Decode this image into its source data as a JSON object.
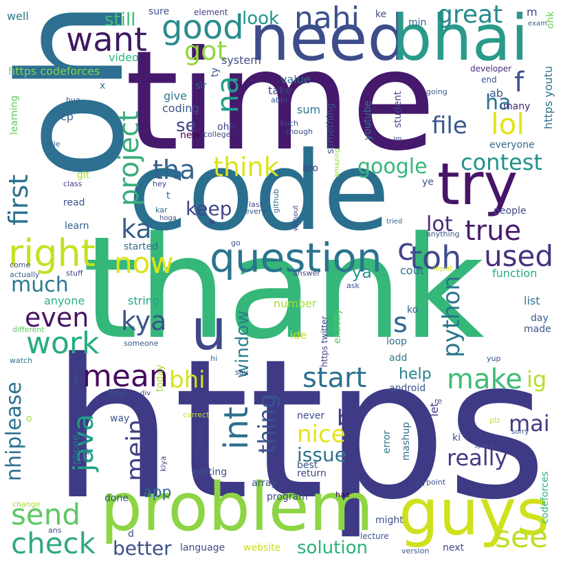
{
  "words": [
    {
      "text": "https",
      "color": "#3e3a85"
    },
    {
      "text": "thank",
      "color": "#35b779"
    },
    {
      "text": "time",
      "color": "#45196c"
    },
    {
      "text": "code",
      "color": "#2a6f8e"
    },
    {
      "text": "oh",
      "color": "#2d7092"
    },
    {
      "text": "problem",
      "color": "#8dd544"
    },
    {
      "text": "guys",
      "color": "#cfe11c"
    },
    {
      "text": "need",
      "color": "#3d4d8a"
    },
    {
      "text": "bhai",
      "color": "#2a9a8a"
    },
    {
      "text": "try",
      "color": "#481467"
    },
    {
      "text": "u",
      "color": "#3f4889"
    },
    {
      "text": "question",
      "color": "#2b748e"
    },
    {
      "text": "nahi",
      "color": "#3b528b"
    },
    {
      "text": "want",
      "color": "#3f1a63"
    },
    {
      "text": "good",
      "color": "#2b8c8c"
    },
    {
      "text": "got",
      "color": "#94d840"
    },
    {
      "text": "na",
      "color": "#1f9e89"
    },
    {
      "text": "project",
      "color": "#39ad7a"
    },
    {
      "text": "right",
      "color": "#c5e021"
    },
    {
      "text": "now",
      "color": "#dde318"
    },
    {
      "text": "work",
      "color": "#26ad81"
    },
    {
      "text": "mean",
      "color": "#460b5e"
    },
    {
      "text": "send",
      "color": "#5cc863"
    },
    {
      "text": "check",
      "color": "#31a97b"
    },
    {
      "text": "java",
      "color": "#1fa088"
    },
    {
      "text": "int",
      "color": "#2e6f8e"
    },
    {
      "text": "bhi",
      "color": "#d5e21a"
    },
    {
      "text": "kya",
      "color": "#3a548c"
    },
    {
      "text": "tha",
      "color": "#33628d"
    },
    {
      "text": "think",
      "color": "#dde318"
    },
    {
      "text": "first",
      "color": "#2c728e"
    },
    {
      "text": "ka",
      "color": "#365d8d"
    },
    {
      "text": "even",
      "color": "#471365"
    },
    {
      "text": "much",
      "color": "#2a788e"
    },
    {
      "text": "start",
      "color": "#2c718e"
    },
    {
      "text": "make",
      "color": "#3dbc74"
    },
    {
      "text": "j",
      "color": "#443a83"
    },
    {
      "text": "mein",
      "color": "#433d84"
    },
    {
      "text": "s",
      "color": "#31688e"
    },
    {
      "text": "python",
      "color": "#2a768e"
    },
    {
      "text": "window",
      "color": "#277f8e"
    },
    {
      "text": "toh",
      "color": "#3e4a89"
    },
    {
      "text": "used",
      "color": "#46327e"
    },
    {
      "text": "true",
      "color": "#481b6d"
    },
    {
      "text": "c",
      "color": "#414487"
    },
    {
      "text": "lot",
      "color": "#482979"
    },
    {
      "text": "keep",
      "color": "#404588"
    },
    {
      "text": "contest",
      "color": "#21918c"
    },
    {
      "text": "google",
      "color": "#35b779"
    },
    {
      "text": "file",
      "color": "#39568c"
    },
    {
      "text": "lol",
      "color": "#e2e418"
    },
    {
      "text": "ha",
      "color": "#2e6e8e"
    },
    {
      "text": "f",
      "color": "#3b528b"
    },
    {
      "text": "great",
      "color": "#23898e"
    },
    {
      "text": "look",
      "color": "#1f968b"
    },
    {
      "text": "still",
      "color": "#3ebc73"
    },
    {
      "text": "se",
      "color": "#404688"
    },
    {
      "text": "nice",
      "color": "#e5e419"
    },
    {
      "text": "thing",
      "color": "#3a538b"
    },
    {
      "text": "b",
      "color": "#453581"
    },
    {
      "text": "issue",
      "color": "#2c728e"
    },
    {
      "text": "really",
      "color": "#453882"
    },
    {
      "text": "mai",
      "color": "#443983"
    },
    {
      "text": "ig",
      "color": "#b8de29"
    },
    {
      "text": "help",
      "color": "#26828e"
    },
    {
      "text": "see",
      "color": "#bddf26"
    },
    {
      "text": "solution",
      "color": "#2db27d"
    },
    {
      "text": "better",
      "color": "#3c4f8a"
    },
    {
      "text": "nhiplease",
      "color": "#2d708e"
    },
    {
      "text": "app",
      "color": "#31688e"
    },
    {
      "text": "ya",
      "color": "#1f988b"
    },
    {
      "text": "sure",
      "color": "#3b528b"
    },
    {
      "text": "element",
      "color": "#424186"
    },
    {
      "text": "ke",
      "color": "#3e4c8a"
    },
    {
      "text": "m",
      "color": "#404588"
    },
    {
      "text": "ohk",
      "color": "#6ece58"
    },
    {
      "text": "well",
      "color": "#2a768e"
    },
    {
      "text": "min",
      "color": "#34608d"
    },
    {
      "text": "exam",
      "color": "#35608d"
    },
    {
      "text": "video",
      "color": "#2fb47c"
    },
    {
      "text": "system",
      "color": "#3e4a89"
    },
    {
      "text": "https codeforces",
      "color": "#7fd34e"
    },
    {
      "text": "ty",
      "color": "#3b528b"
    },
    {
      "text": "value",
      "color": "#2d718e"
    },
    {
      "text": "developer",
      "color": "#472c7a"
    },
    {
      "text": "end",
      "color": "#3c508b"
    },
    {
      "text": "https youtu",
      "color": "#2d708e"
    },
    {
      "text": "sir",
      "color": "#31678e"
    },
    {
      "text": "take",
      "color": "#424186"
    },
    {
      "text": "abhi",
      "color": "#365c8d"
    },
    {
      "text": "give",
      "color": "#2a778e"
    },
    {
      "text": "x",
      "color": "#27808e"
    },
    {
      "text": "hua",
      "color": "#32658e"
    },
    {
      "text": "coding",
      "color": "#3b528b"
    },
    {
      "text": "sum",
      "color": "#2a788e"
    },
    {
      "text": "kuch",
      "color": "#3b528b"
    },
    {
      "text": "something",
      "color": "#3a548c"
    },
    {
      "text": "student",
      "color": "#3f4788"
    },
    {
      "text": "ab",
      "color": "#39568c"
    },
    {
      "text": "going",
      "color": "#365c8d"
    },
    {
      "text": "many",
      "color": "#482475"
    },
    {
      "text": "learning",
      "color": "#5ec962"
    },
    {
      "text": "cp",
      "color": "#33638d"
    },
    {
      "text": "ohh",
      "color": "#433e85"
    },
    {
      "text": "new",
      "color": "#440154"
    },
    {
      "text": "college",
      "color": "#3e4989"
    },
    {
      "text": "though",
      "color": "#3f4889"
    },
    {
      "text": "youtube",
      "color": "#2a788e"
    },
    {
      "text": "im",
      "color": "#3e4a89"
    },
    {
      "text": "everyone",
      "color": "#31688e"
    },
    {
      "text": "able",
      "color": "#33638d"
    },
    {
      "text": "amazing",
      "color": "#95d840"
    },
    {
      "text": "git",
      "color": "#a2da37"
    },
    {
      "text": "bro",
      "color": "#433e85"
    },
    {
      "text": "ye",
      "color": "#3a548c"
    },
    {
      "text": "class",
      "color": "#453781"
    },
    {
      "text": "hey",
      "color": "#414487"
    },
    {
      "text": "t",
      "color": "#34608d"
    },
    {
      "text": "kar",
      "color": "#31688e"
    },
    {
      "text": "last",
      "color": "#3e4989"
    },
    {
      "text": "every",
      "color": "#37598c"
    },
    {
      "text": "read",
      "color": "#3b528b"
    },
    {
      "text": "hoga",
      "color": "#3c4f8a"
    },
    {
      "text": "github",
      "color": "#2e6e8e"
    },
    {
      "text": "without",
      "color": "#404588"
    },
    {
      "text": "tried",
      "color": "#33638d"
    },
    {
      "text": "people",
      "color": "#3e4989"
    },
    {
      "text": "learn",
      "color": "#33638d"
    },
    {
      "text": "ik",
      "color": "#482878"
    },
    {
      "text": "anything",
      "color": "#3b528b"
    },
    {
      "text": "started",
      "color": "#2f6b8e"
    },
    {
      "text": "go",
      "color": "#3c4f8a"
    },
    {
      "text": "input",
      "color": "#cde11d"
    },
    {
      "text": "come",
      "color": "#3b528b"
    },
    {
      "text": "actually",
      "color": "#34608d"
    },
    {
      "text": "stuff",
      "color": "#414487"
    },
    {
      "text": "answer",
      "color": "#404588"
    },
    {
      "text": "ask",
      "color": "#3e4a89"
    },
    {
      "text": "cout",
      "color": "#2c738e"
    },
    {
      "text": "function",
      "color": "#25ac82"
    },
    {
      "text": "anyone",
      "color": "#2ab07f"
    },
    {
      "text": "string",
      "color": "#21a685"
    },
    {
      "text": "number",
      "color": "#a8db34"
    },
    {
      "text": "list",
      "color": "#2c738e"
    },
    {
      "text": "day",
      "color": "#365c8d"
    },
    {
      "text": "made",
      "color": "#3b528b"
    },
    {
      "text": "ko",
      "color": "#34608d"
    },
    {
      "text": "https twitter",
      "color": "#433e85"
    },
    {
      "text": "exactly",
      "color": "#5cc863"
    },
    {
      "text": "different",
      "color": "#5ec962"
    },
    {
      "text": "someone",
      "color": "#3a548c"
    },
    {
      "text": "ide",
      "color": "#c8e020"
    },
    {
      "text": "loop",
      "color": "#2f6c8e"
    },
    {
      "text": "watch",
      "color": "#2a788e"
    },
    {
      "text": "hi",
      "color": "#32658e"
    },
    {
      "text": "yup",
      "color": "#3b528b"
    },
    {
      "text": "today",
      "color": "#a8db34"
    },
    {
      "text": "say",
      "color": "#3e4a89"
    },
    {
      "text": "add",
      "color": "#2a778e"
    },
    {
      "text": "max",
      "color": "#3a548c"
    },
    {
      "text": "android",
      "color": "#3b528b"
    },
    {
      "text": "find",
      "color": "#3c4f8a"
    },
    {
      "text": "div",
      "color": "#433e85"
    },
    {
      "text": "re",
      "color": "#3a548c"
    },
    {
      "text": "let",
      "color": "#453882"
    },
    {
      "text": "o",
      "color": "#9fda3a"
    },
    {
      "text": "correct",
      "color": "#c6e021"
    },
    {
      "text": "way",
      "color": "#3b528b"
    },
    {
      "text": "never",
      "color": "#3e4a89"
    },
    {
      "text": "error",
      "color": "#2a788e"
    },
    {
      "text": "mashup",
      "color": "#2e6e8e"
    },
    {
      "text": "plz",
      "color": "#bade28"
    },
    {
      "text": "sorry",
      "color": "#3a548c"
    },
    {
      "text": "phone",
      "color": "#2c738e"
    },
    {
      "text": "algorithm",
      "color": "#3b528b"
    },
    {
      "text": "kiya",
      "color": "#3e4a89"
    },
    {
      "text": "ki",
      "color": "#3c4f8a"
    },
    {
      "text": "space",
      "color": "#3b528b"
    },
    {
      "text": "best",
      "color": "#3a548c"
    },
    {
      "text": "return",
      "color": "#3e4a89"
    },
    {
      "text": "getting",
      "color": "#3b528b"
    },
    {
      "text": "array",
      "color": "#3a548c"
    },
    {
      "text": "join",
      "color": "#3e4a89"
    },
    {
      "text": "point",
      "color": "#3b528b"
    },
    {
      "text": "done",
      "color": "#3a548c"
    },
    {
      "text": "program",
      "color": "#3e4a89"
    },
    {
      "text": "haa",
      "color": "#440154"
    },
    {
      "text": "change",
      "color": "#a8db34"
    },
    {
      "text": "ans",
      "color": "#3e4a89"
    },
    {
      "text": "d",
      "color": "#3b528b"
    },
    {
      "text": "language",
      "color": "#3e4a89"
    },
    {
      "text": "website",
      "color": "#cde11d"
    },
    {
      "text": "might",
      "color": "#3b528b"
    },
    {
      "text": "lecture",
      "color": "#3a548c"
    },
    {
      "text": "next",
      "color": "#3e4a89"
    },
    {
      "text": "version",
      "color": "#3b528b"
    },
    {
      "text": "codeforces",
      "color": "#2db27d"
    }
  ]
}
